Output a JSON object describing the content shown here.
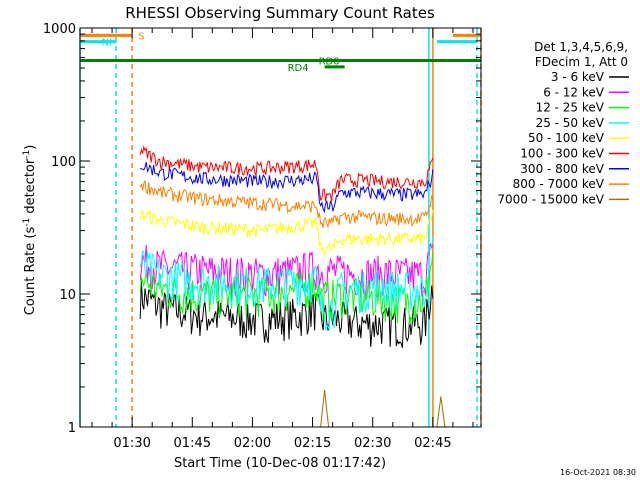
{
  "chart_data": {
    "type": "line",
    "title": "RHESSI Observing Summary Count Rates",
    "xlabel": "Start Time (10-Dec-08 01:17:42)",
    "ylabel": "Count Rate (s",
    "ylabel_sup": "-1",
    "ylabel_tail": " detector",
    "ylabel_close": ")",
    "yscale": "log",
    "ylim": [
      1,
      1000
    ],
    "xlim_minutes": [
      0,
      100
    ],
    "x_ticks": [
      {
        "t": 13,
        "label": "01:30"
      },
      {
        "t": 28,
        "label": "01:45"
      },
      {
        "t": 43,
        "label": "02:00"
      },
      {
        "t": 58,
        "label": "02:15"
      },
      {
        "t": 73,
        "label": "02:30"
      },
      {
        "t": 88,
        "label": "02:45"
      }
    ],
    "y_ticks": [
      {
        "v": 1,
        "label": "1"
      },
      {
        "v": 10,
        "label": "10"
      },
      {
        "v": 100,
        "label": "100"
      },
      {
        "v": 1000,
        "label": "1000"
      }
    ],
    "legend_header": [
      "Det 1,3,4,5,6,9,",
      "FDecim 1, Att 0"
    ],
    "timestamp": "16-Oct-2021 08:30",
    "series": [
      {
        "name": "3 - 6 keV",
        "color": "#000000",
        "t": [
          15,
          20,
          30,
          45,
          55,
          59,
          60,
          63,
          65,
          71,
          75,
          80,
          86,
          88
        ],
        "v": [
          10,
          8,
          7,
          6.5,
          7,
          8,
          6.5,
          6.5,
          6.5,
          6,
          6,
          6,
          6,
          12
        ]
      },
      {
        "name": "6 - 12 keV",
        "color": "#ff00ff",
        "t": [
          15,
          20,
          30,
          45,
          55,
          59,
          60,
          63,
          65,
          71,
          75,
          80,
          86,
          88
        ],
        "v": [
          18,
          16,
          15,
          14,
          15,
          16,
          15,
          15,
          14.5,
          14,
          14.5,
          14,
          14,
          22
        ]
      },
      {
        "name": "12 - 25 keV",
        "color": "#00ff00",
        "t": [
          15,
          20,
          30,
          45,
          55,
          59,
          60,
          63,
          65,
          71,
          75,
          80,
          86,
          88
        ],
        "v": [
          13,
          11,
          10,
          10,
          11,
          12,
          9.5,
          9.5,
          10,
          9.5,
          9.5,
          9,
          9,
          20
        ]
      },
      {
        "name": "25 - 50 keV",
        "color": "#00ffff",
        "t": [
          15,
          20,
          30,
          45,
          55,
          59,
          60,
          63,
          65,
          71,
          75,
          80,
          86,
          88
        ],
        "v": [
          17,
          14,
          12.5,
          12,
          12.5,
          13,
          8,
          8,
          11,
          11,
          12,
          11,
          11,
          25
        ]
      },
      {
        "name": "50 - 100 keV",
        "color": "#ffff00",
        "t": [
          15,
          20,
          30,
          45,
          55,
          59,
          60,
          63,
          65,
          71,
          75,
          80,
          86,
          88
        ],
        "v": [
          40,
          36,
          32,
          30,
          33,
          34,
          22,
          22,
          26,
          26,
          26,
          26,
          26,
          40
        ]
      },
      {
        "name": "100 - 300 keV",
        "color": "#ff0000",
        "t": [
          15,
          20,
          30,
          45,
          55,
          59,
          60,
          63,
          65,
          71,
          75,
          80,
          86,
          88
        ],
        "v": [
          120,
          100,
          90,
          88,
          92,
          95,
          55,
          55,
          72,
          72,
          70,
          70,
          70,
          100
        ]
      },
      {
        "name": "300 - 800 keV",
        "color": "#0000ff",
        "t": [
          15,
          20,
          30,
          45,
          55,
          59,
          60,
          63,
          65,
          71,
          75,
          80,
          86,
          88
        ],
        "v": [
          95,
          82,
          74,
          70,
          72,
          74,
          45,
          45,
          58,
          58,
          57,
          56,
          56,
          78
        ]
      },
      {
        "name": "800 - 7000 keV",
        "color": "#ff8000",
        "t": [
          15,
          20,
          30,
          45,
          55,
          59,
          60,
          63,
          65,
          71,
          75,
          80,
          86,
          88
        ],
        "v": [
          68,
          58,
          52,
          48,
          46,
          46,
          34,
          34,
          38,
          38,
          37,
          37,
          37,
          55
        ]
      },
      {
        "name": "7000 - 15000 keV",
        "color": "#a07000",
        "t": [
          60,
          61,
          62,
          89,
          90,
          91
        ],
        "v": [
          1,
          1.9,
          1,
          1,
          1.7,
          1
        ]
      }
    ],
    "flags": [
      {
        "label": "S",
        "color": "#ff8000",
        "segments": [
          [
            0,
            13
          ],
          [
            93,
            100
          ]
        ],
        "level": 880
      },
      {
        "label": "NI",
        "color": "#00e5ee",
        "segments": [
          [
            0,
            9
          ],
          [
            89,
            99
          ]
        ],
        "level": 790
      },
      {
        "label": "RD0",
        "color": "#008000",
        "segments": [
          [
            0,
            100
          ]
        ],
        "level": 570
      },
      {
        "label": "RD4",
        "color": "#008000",
        "segments": [
          [
            61,
            66
          ]
        ],
        "level": 510
      }
    ],
    "vlines": [
      {
        "t": 0,
        "color": "#00e5ee",
        "style": "solid"
      },
      {
        "t": 9,
        "color": "#00e5ee",
        "style": "dashed"
      },
      {
        "t": 13,
        "color": "#ff8000",
        "style": "dashed"
      },
      {
        "t": 87,
        "color": "#00e5ee",
        "style": "solid"
      },
      {
        "t": 88,
        "color": "#ff8000",
        "style": "solid"
      },
      {
        "t": 99,
        "color": "#00e5ee",
        "style": "dashed"
      },
      {
        "t": 100,
        "color": "#ff8000",
        "style": "dashed"
      }
    ]
  }
}
